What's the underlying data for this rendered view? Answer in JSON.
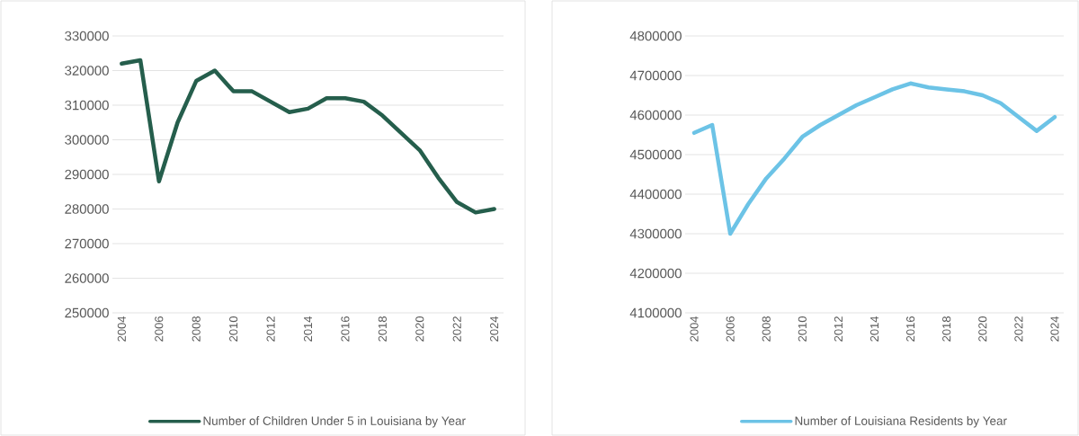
{
  "chart_data": [
    {
      "type": "line",
      "x": [
        2004,
        2005,
        2006,
        2007,
        2008,
        2009,
        2010,
        2011,
        2012,
        2013,
        2014,
        2015,
        2016,
        2017,
        2018,
        2019,
        2020,
        2021,
        2022,
        2023,
        2024
      ],
      "series": [
        {
          "name": "Number of Children Under 5 in Louisiana by Year",
          "color": "#255e4c",
          "values": [
            322000,
            323000,
            288000,
            305000,
            317000,
            320000,
            314000,
            314000,
            311000,
            308000,
            309000,
            312000,
            312000,
            311000,
            307000,
            302000,
            297000,
            289000,
            282000,
            279000,
            280000
          ]
        }
      ],
      "xlim": [
        2003.5,
        2024.5
      ],
      "xticks": [
        2004,
        2006,
        2008,
        2010,
        2012,
        2014,
        2016,
        2018,
        2020,
        2022,
        2024
      ],
      "ylim": [
        250000,
        330000
      ],
      "yticks": [
        250000,
        260000,
        270000,
        280000,
        290000,
        300000,
        310000,
        320000,
        330000
      ],
      "grid": "y",
      "legend": "bottom"
    },
    {
      "type": "line",
      "x": [
        2004,
        2005,
        2006,
        2007,
        2008,
        2009,
        2010,
        2011,
        2012,
        2013,
        2014,
        2015,
        2016,
        2017,
        2018,
        2019,
        2020,
        2021,
        2022,
        2023,
        2024
      ],
      "series": [
        {
          "name": "Number of Louisiana Residents by Year",
          "color": "#6cc3e6",
          "values": [
            4555000,
            4575000,
            4300000,
            4375000,
            4440000,
            4490000,
            4545000,
            4575000,
            4600000,
            4625000,
            4645000,
            4665000,
            4680000,
            4670000,
            4665000,
            4660000,
            4650000,
            4630000,
            4595000,
            4560000,
            4595000
          ]
        }
      ],
      "xlim": [
        2003.5,
        2024.5
      ],
      "xticks": [
        2004,
        2006,
        2008,
        2010,
        2012,
        2014,
        2016,
        2018,
        2020,
        2022,
        2024
      ],
      "ylim": [
        4100000,
        4800000
      ],
      "yticks": [
        4100000,
        4200000,
        4300000,
        4400000,
        4500000,
        4600000,
        4700000,
        4800000
      ],
      "grid": "y",
      "legend": "bottom"
    }
  ]
}
